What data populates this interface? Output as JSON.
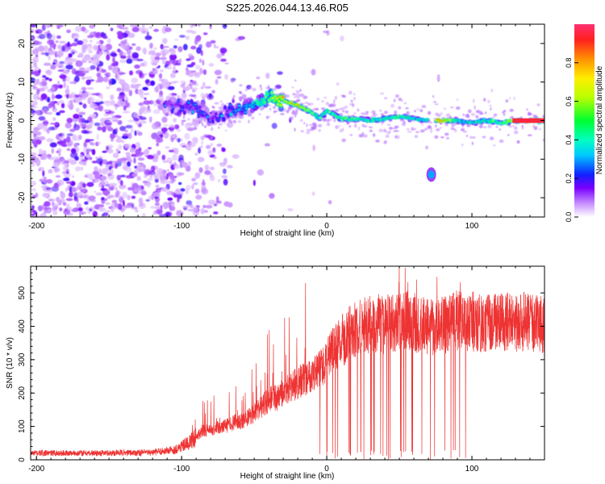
{
  "title": "S225.2026.044.13.46.R05",
  "chart_data": [
    {
      "type": "heatmap",
      "xlabel": "Height of straight line (km)",
      "ylabel": "Frequency (Hz)",
      "xlim": [
        -204,
        150
      ],
      "ylim": [
        -25,
        25
      ],
      "xticks": [
        -200,
        -100,
        0,
        100
      ],
      "yticks": [
        -20,
        -10,
        0,
        10,
        20
      ],
      "colorbar": {
        "label": "Normalized spectral amplitude",
        "range": [
          0.0,
          1.0
        ],
        "ticks": [
          0.0,
          0.2,
          0.4,
          0.6,
          0.8
        ]
      },
      "ridge": {
        "x": [
          -110,
          -100,
          -90,
          -80,
          -70,
          -60,
          -50,
          -40,
          -30,
          -20,
          -10,
          -5,
          0,
          5,
          10,
          20,
          30,
          40,
          50,
          60,
          70,
          78,
          90,
          100,
          110,
          120,
          130,
          140,
          150
        ],
        "frequency": [
          4,
          4,
          3.5,
          0,
          2,
          3,
          4,
          6,
          5,
          4,
          2,
          0.5,
          2.5,
          1.5,
          0.5,
          0.5,
          0,
          0.5,
          1,
          0.5,
          0,
          0,
          0,
          -0.5,
          0,
          -0.5,
          0,
          0,
          0
        ],
        "amplitude": [
          0.15,
          0.2,
          0.25,
          0.2,
          0.25,
          0.3,
          0.4,
          0.6,
          0.7,
          0.8,
          0.5,
          0.45,
          0.5,
          0.5,
          0.55,
          0.5,
          0.45,
          0.5,
          0.5,
          0.45,
          0.4,
          0.95,
          0.4,
          0.45,
          0.45,
          0.5,
          0.8,
          0.95,
          0.95
        ]
      },
      "secondary_blob": {
        "x": 72,
        "frequency": -14,
        "amplitude": 0.3
      },
      "gap_x": [
        70,
        75
      ]
    },
    {
      "type": "line",
      "xlabel": "Height of straight line (km)",
      "ylabel": "SNR (10 * v/v)",
      "xlim": [
        -204,
        150
      ],
      "ylim": [
        0,
        580
      ],
      "xticks": [
        -200,
        -100,
        0,
        100
      ],
      "yticks": [
        0,
        100,
        200,
        300,
        400,
        500
      ],
      "series": [
        {
          "color": "#ee3333",
          "x": [
            -204,
            -180,
            -160,
            -140,
            -120,
            -105,
            -95,
            -90,
            -85,
            -80,
            -75,
            -70,
            -65,
            -60,
            -55,
            -50,
            -45,
            -40,
            -35,
            -30,
            -25,
            -20,
            -15,
            -10,
            -5,
            0,
            5,
            10,
            15,
            20,
            25,
            30,
            35,
            40,
            45,
            50,
            55,
            60,
            65,
            70,
            75,
            80,
            85,
            90,
            95,
            100,
            110,
            120,
            130,
            140,
            150
          ],
          "values": [
            20,
            20,
            20,
            21,
            22,
            30,
            50,
            70,
            90,
            85,
            95,
            100,
            110,
            115,
            125,
            140,
            160,
            180,
            185,
            200,
            215,
            230,
            245,
            260,
            270,
            300,
            330,
            355,
            375,
            390,
            400,
            405,
            410,
            405,
            410,
            415,
            420,
            410,
            405,
            400,
            400,
            405,
            410,
            420,
            410,
            415,
            410,
            410,
            415,
            410,
            410
          ]
        }
      ]
    }
  ]
}
